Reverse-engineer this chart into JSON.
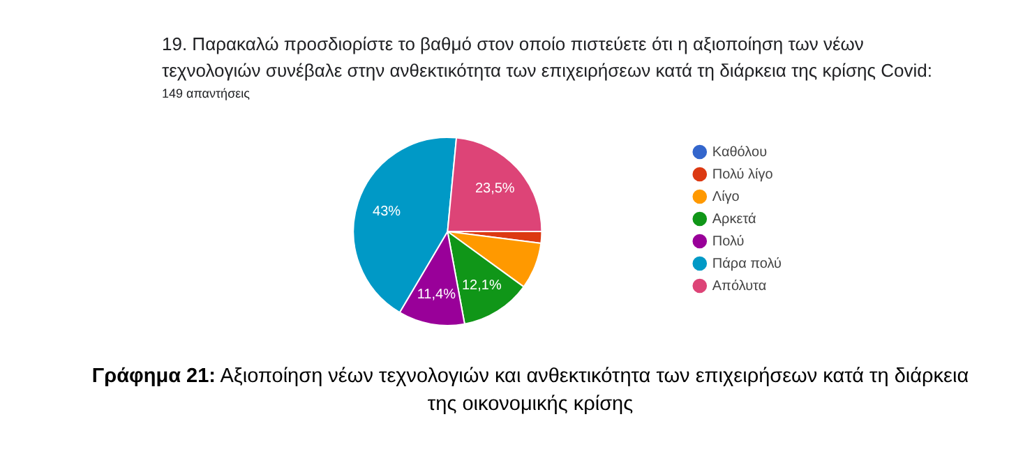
{
  "chart_data": {
    "type": "pie",
    "title": "19. Παρακαλώ προσδιορίστε το βαθμό στον οποίο πιστεύετε ότι η αξιοποίηση των νέων τεχνολογιών συνέβαλε στην ανθεκτικότητα των επιχειρήσεων κατά τη διάρκεια της κρίσης Covid:",
    "subtitle": "149 απαντήσεις",
    "categories": [
      "Καθόλου",
      "Πολύ λίγο",
      "Λίγο",
      "Αρκετά",
      "Πολύ",
      "Πάρα πολύ",
      "Απόλυτα"
    ],
    "values": [
      0,
      2,
      8,
      12.1,
      11.4,
      43,
      23.5
    ],
    "value_labels": [
      null,
      null,
      null,
      "12,1%",
      "11,4%",
      "43%",
      "23,5%"
    ],
    "colors": [
      "#3366cc",
      "#dc3912",
      "#ff9900",
      "#109618",
      "#990099",
      "#0099c6",
      "#dd4477"
    ],
    "legend": "right",
    "annotations": [
      "Γράφημα 21: Αξιοποίηση νέων τεχνολογιών και ανθεκτικότητα των επιχειρήσεων κατά τη διάρκεια της οικονομικής κρίσης"
    ]
  }
}
